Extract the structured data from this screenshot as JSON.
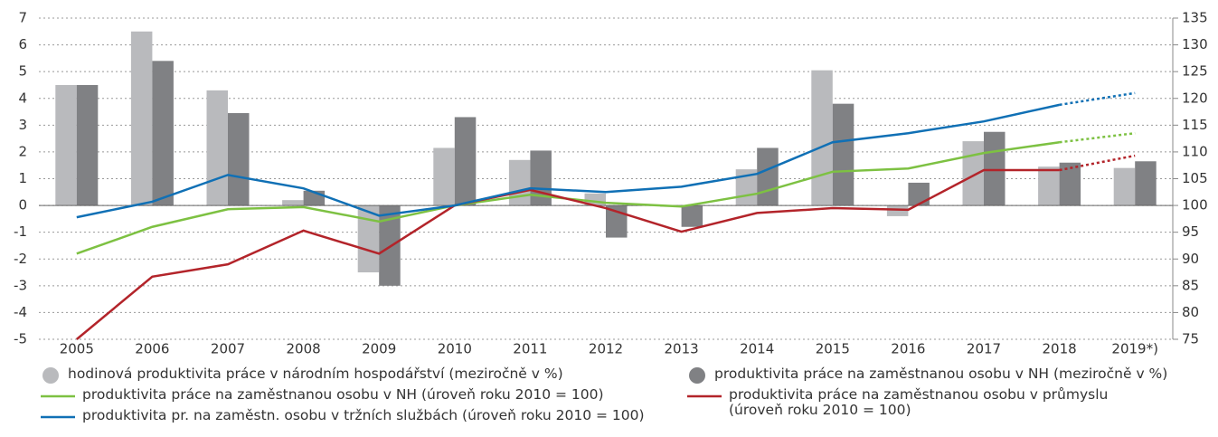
{
  "chart_data": {
    "type": "bar_line",
    "categories": [
      "2005",
      "2006",
      "2007",
      "2008",
      "2009",
      "2010",
      "2011",
      "2012",
      "2013",
      "2014",
      "2015",
      "2016",
      "2017",
      "2018",
      "2019*)"
    ],
    "series": [
      {
        "name": "hodinová produktivita práce v národním hospodářství (meziročně v %)",
        "type": "bar",
        "color": "#b9babd",
        "values": [
          4.5,
          6.5,
          4.3,
          0.2,
          -2.5,
          2.15,
          1.7,
          0.45,
          -0.05,
          1.35,
          5.05,
          -0.4,
          2.4,
          1.45,
          1.4
        ]
      },
      {
        "name": "produktivita práce na zaměstnanou osobu v NH (meziročně v %)",
        "type": "bar",
        "color": "#808184",
        "values": [
          4.5,
          5.4,
          3.45,
          0.55,
          -3.0,
          3.3,
          2.05,
          -1.2,
          -0.8,
          2.15,
          3.8,
          0.85,
          2.75,
          1.6,
          1.65
        ]
      },
      {
        "name": "produktivita práce na zaměstnanou osobu v NH (úroveň roku 2010 = 100)",
        "type": "line",
        "axis": "y2",
        "color": "#7dc142",
        "dotted_last": true,
        "values": [
          91.0,
          96.0,
          99.3,
          99.7,
          97.0,
          100,
          102.0,
          100.5,
          99.8,
          102.2,
          106.3,
          106.9,
          109.8,
          111.8,
          113.5
        ]
      },
      {
        "name": "produktivita práce na zaměstnanou osobu v průmyslu (úroveň roku 2010 = 100)",
        "type": "line",
        "axis": "y2",
        "color": "#b3242a",
        "dotted_last": true,
        "values": [
          75,
          86.7,
          89.0,
          95.3,
          91.0,
          100,
          102.9,
          99.5,
          95.1,
          98.6,
          99.5,
          99.2,
          106.6,
          106.6,
          109.3
        ]
      },
      {
        "name": "produktivita pr. na zaměstn. osobu v tržních službách (úroveň roku 2010 = 100)",
        "type": "line",
        "axis": "y2",
        "color": "#1070b5",
        "dotted_last": true,
        "values": [
          97.8,
          100.7,
          105.7,
          103.2,
          98.1,
          100,
          103.2,
          102.5,
          103.5,
          105.9,
          111.8,
          113.5,
          115.7,
          118.8,
          121.0
        ]
      }
    ],
    "ylim": [
      -5,
      7
    ],
    "yticks": [
      -5,
      -4,
      -3,
      -2,
      -1,
      0,
      1,
      2,
      3,
      4,
      5,
      6,
      7
    ],
    "y2lim": [
      75,
      135
    ],
    "y2ticks": [
      75,
      80,
      85,
      90,
      95,
      100,
      105,
      110,
      115,
      120,
      125,
      130,
      135
    ],
    "grid": true
  }
}
